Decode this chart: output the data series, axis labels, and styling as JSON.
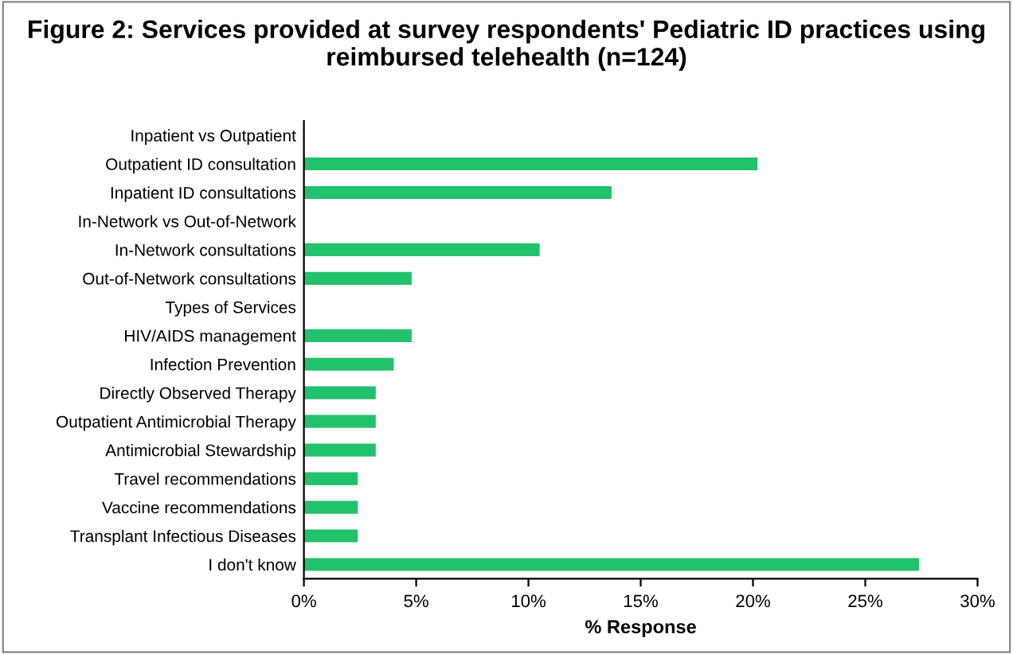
{
  "chart_data": {
    "type": "bar",
    "orientation": "horizontal",
    "title": "Figure 2: Services provided at survey respondents' Pediatric ID practices using reimbursed telehealth (n=124)",
    "xlabel": "% Response",
    "categories": [
      "Inpatient vs Outpatient",
      "Outpatient ID consultation",
      "Inpatient ID consultations",
      "In-Network vs Out-of-Network",
      "In-Network consultations",
      "Out-of-Network consultations",
      "Types of Services",
      "HIV/AIDS management",
      "Infection Prevention",
      "Directly Observed Therapy",
      "Outpatient Antimicrobial Therapy",
      "Antimicrobial Stewardship",
      "Travel recommendations",
      "Vaccine recommendations",
      "Transplant Infectious Diseases",
      "I don't know"
    ],
    "values": [
      null,
      20.2,
      13.7,
      null,
      10.5,
      4.8,
      null,
      4.8,
      4.0,
      3.2,
      3.2,
      3.2,
      2.4,
      2.4,
      2.4,
      27.4
    ],
    "color": "#22c16b",
    "xlim": [
      0,
      30
    ],
    "xticks": [
      {
        "value": 0,
        "label": "0%"
      },
      {
        "value": 5,
        "label": "5%"
      },
      {
        "value": 10,
        "label": "10%"
      },
      {
        "value": 15,
        "label": "15%"
      },
      {
        "value": 20,
        "label": "20%"
      },
      {
        "value": 25,
        "label": "25%"
      },
      {
        "value": 30,
        "label": "30%"
      }
    ],
    "grid": false,
    "legend": false
  }
}
